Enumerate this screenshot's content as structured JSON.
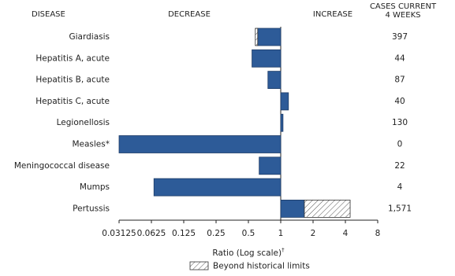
{
  "chart_data": {
    "type": "bar",
    "orientation": "horizontal",
    "log_scale": true,
    "headers": {
      "disease": "DISEASE",
      "decrease": "DECREASE",
      "increase": "INCREASE",
      "cases": [
        "CASES CURRENT",
        "4 WEEKS"
      ]
    },
    "categories": [
      "Giardiasis",
      "Hepatitis A, acute",
      "Hepatitis B, acute",
      "Hepatitis C, acute",
      "Legionellosis",
      "Measles*",
      "Meningococcal disease",
      "Mumps",
      "Pertussis"
    ],
    "values": [
      0.58,
      0.54,
      0.76,
      1.18,
      1.05,
      0.03125,
      0.63,
      0.066,
      4.43
    ],
    "historical_limits": [
      0.61,
      null,
      null,
      null,
      null,
      null,
      null,
      null,
      1.66
    ],
    "cases": [
      397,
      44,
      87,
      40,
      130,
      0,
      22,
      4,
      {
        "value": 1571,
        "label": "1,571"
      }
    ],
    "color": "#2d5b98",
    "xlim": [
      0.03125,
      8
    ],
    "xticks": [
      0.03125,
      0.0625,
      0.125,
      0.25,
      0.5,
      1,
      2,
      4,
      8
    ],
    "x_label": "Ratio (Log scale)",
    "x_label_note": "†",
    "legend": "Beyond historical limits"
  }
}
